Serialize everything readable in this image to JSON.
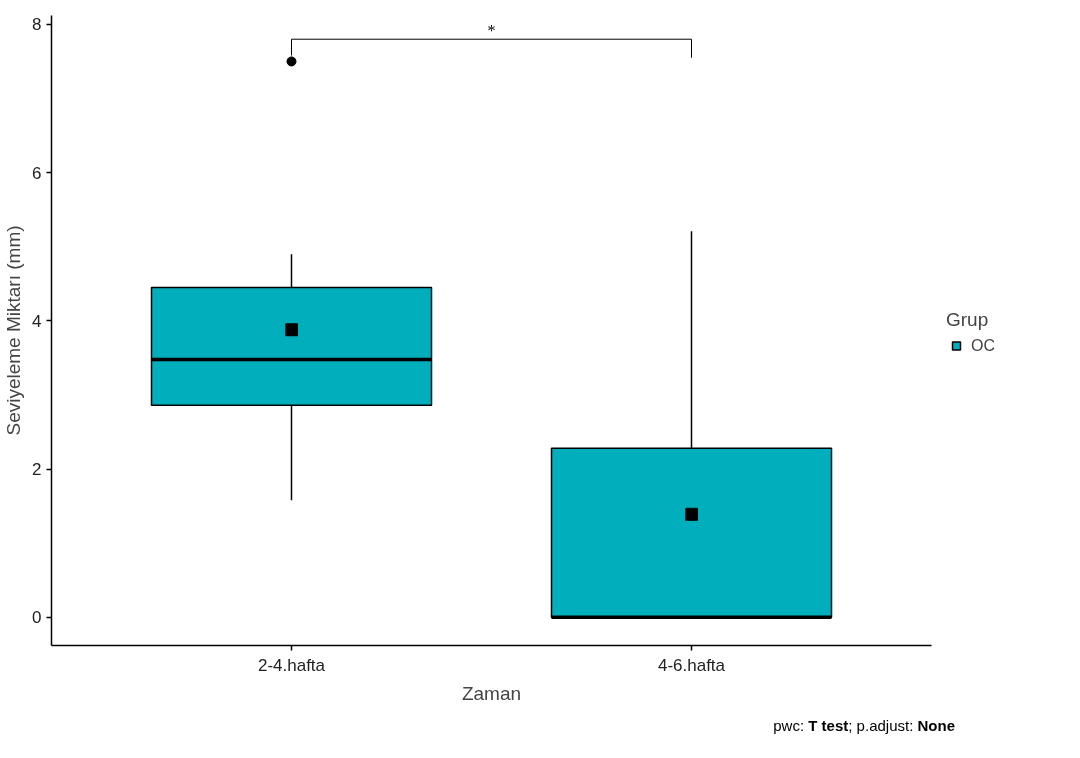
{
  "chart_data": {
    "type": "box",
    "xlabel": "Zaman",
    "ylabel": "Seviyeleme Miktarı (mm)",
    "legend_title": "Grup",
    "categories": [
      "2-4.hafta",
      "4-6.hafta"
    ],
    "series": [
      {
        "name": "OC",
        "color": "#00afbb",
        "boxes": [
          {
            "low": 1.58,
            "q1": 2.86,
            "median": 3.48,
            "q3": 4.45,
            "high": 4.9,
            "mean": 3.88,
            "outliers": [
              7.5
            ]
          },
          {
            "low": 0,
            "q1": 0,
            "median": 0,
            "q3": 2.28,
            "high": 5.21,
            "mean": 1.39
          }
        ]
      }
    ],
    "ylim": [
      -0.38,
      8.12
    ],
    "yticks": [
      0,
      2,
      4,
      6,
      8
    ],
    "legend": "right",
    "marker": "square",
    "annotations": [
      "*",
      "pwc: T test; p.adjust: None"
    ]
  }
}
